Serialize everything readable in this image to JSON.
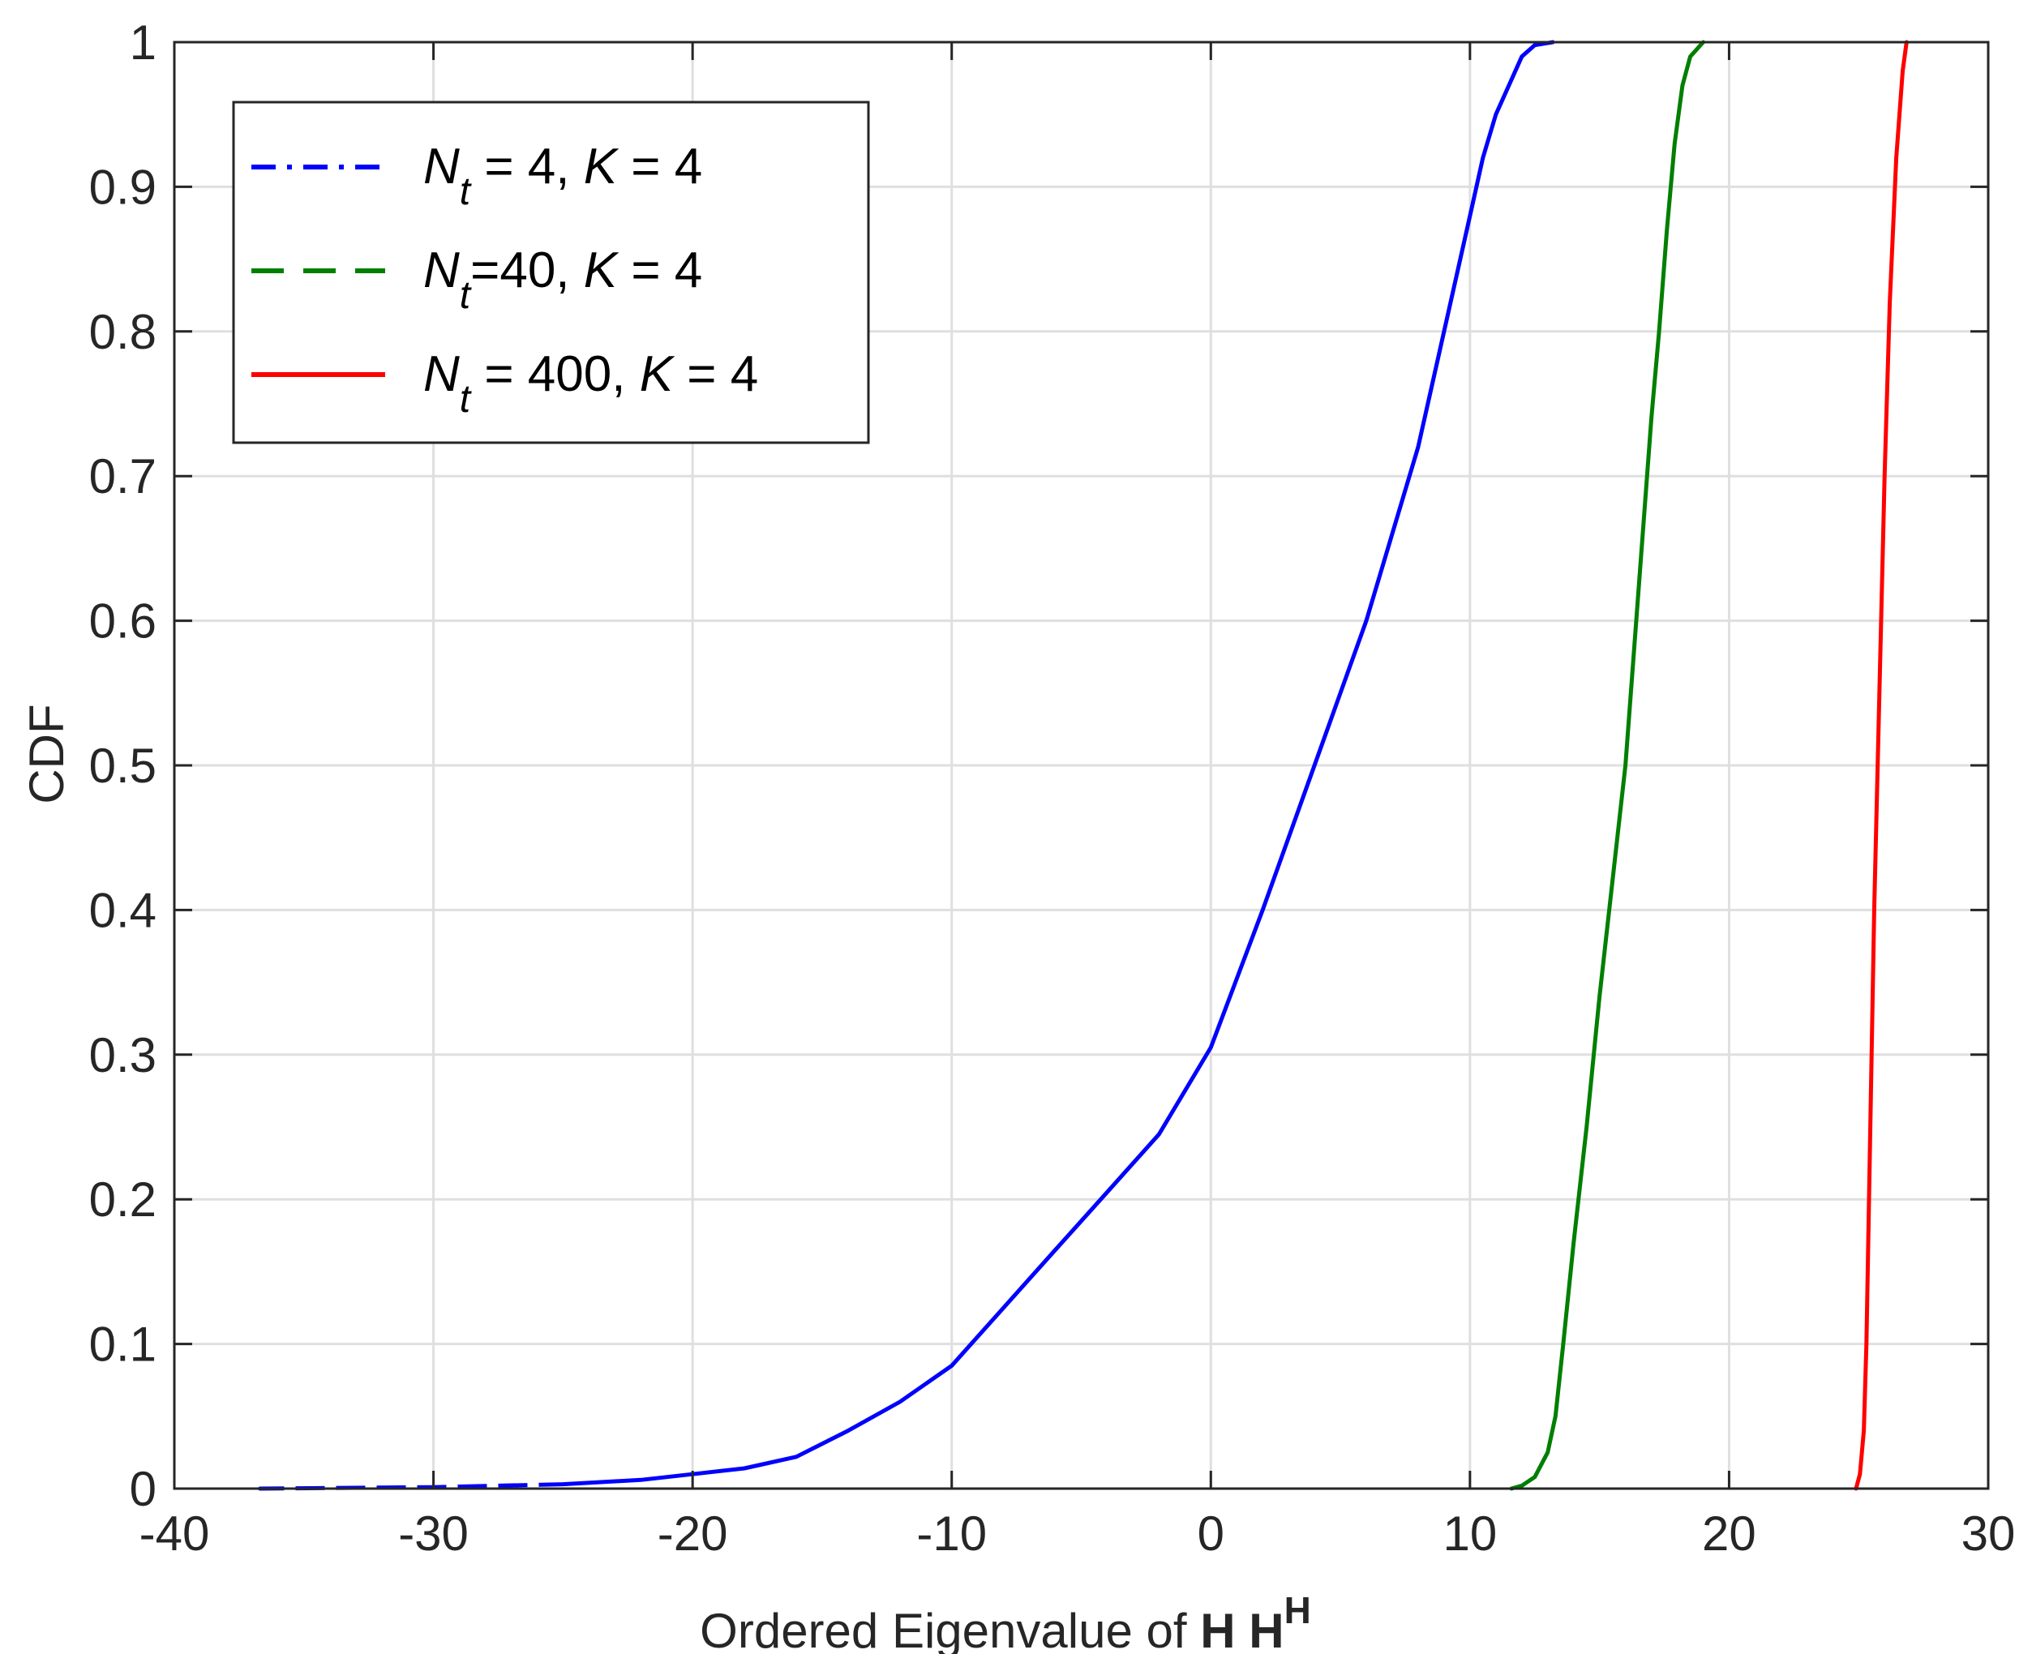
{
  "chart_data": {
    "type": "line",
    "xlabel_text": "Ordered Eigenvalue of ",
    "xlabel_bold": "H H",
    "xlabel_sup": "H",
    "ylabel": "CDF",
    "xlim": [
      -40,
      30
    ],
    "ylim": [
      0,
      1
    ],
    "xticks": [
      -40,
      -30,
      -20,
      -10,
      0,
      10,
      20,
      30
    ],
    "yticks": [
      0,
      0.1,
      0.2,
      0.3,
      0.4,
      0.5,
      0.6,
      0.7,
      0.8,
      0.9,
      1
    ],
    "xtick_labels": [
      "-40",
      "-30",
      "-20",
      "-10",
      "0",
      "10",
      "20",
      "30"
    ],
    "ytick_labels": [
      "0",
      "0.1",
      "0.2",
      "0.3",
      "0.4",
      "0.5",
      "0.6",
      "0.7",
      "0.8",
      "0.9",
      "1"
    ],
    "grid": true,
    "legend_position": "top-left",
    "series": [
      {
        "legend": {
          "n": "N",
          "sub": "t",
          "rest1": " = 4,  ",
          "k": "K",
          "rest2": " = 4"
        },
        "color": "#0000ff",
        "line_style": "dash-dot",
        "x": [
          -36.7,
          -30,
          -25,
          -22,
          -20,
          -18,
          -16,
          -14,
          -12,
          -10,
          -8,
          -6,
          -4,
          -2,
          0,
          2,
          4,
          6,
          8,
          9,
          10,
          10.5,
          11,
          11.5,
          12,
          12.5,
          13.2
        ],
        "y": [
          0,
          0.001,
          0.003,
          0.006,
          0.01,
          0.014,
          0.022,
          0.04,
          0.06,
          0.085,
          0.125,
          0.165,
          0.205,
          0.245,
          0.305,
          0.4,
          0.5,
          0.6,
          0.72,
          0.8,
          0.88,
          0.92,
          0.95,
          0.97,
          0.99,
          0.998,
          1.0
        ]
      },
      {
        "legend": {
          "n": "N",
          "sub": "t",
          "rest1": "=40,  ",
          "k": "K",
          "rest2": " = 4"
        },
        "color": "#007f00",
        "line_style": "dashed",
        "x": [
          11.6,
          12.0,
          12.5,
          13.0,
          13.3,
          13.6,
          14.0,
          14.5,
          15.0,
          15.5,
          16.0,
          16.5,
          17.0,
          17.3,
          17.6,
          17.9,
          18.2,
          18.5,
          19.0
        ],
        "y": [
          0,
          0.002,
          0.008,
          0.025,
          0.05,
          0.1,
          0.17,
          0.25,
          0.34,
          0.42,
          0.5,
          0.62,
          0.74,
          0.8,
          0.87,
          0.93,
          0.97,
          0.99,
          1.0
        ]
      },
      {
        "legend": {
          "n": "N",
          "sub": "t",
          "rest1": " = 400,  ",
          "k": "K",
          "rest2": " = 4"
        },
        "color": "#ff0000",
        "line_style": "solid",
        "x": [
          24.9,
          25.05,
          25.2,
          25.3,
          25.45,
          25.6,
          25.8,
          26.0,
          26.2,
          26.45,
          26.7,
          26.85
        ],
        "y": [
          0,
          0.01,
          0.04,
          0.1,
          0.25,
          0.4,
          0.55,
          0.7,
          0.82,
          0.92,
          0.98,
          1.0
        ]
      }
    ]
  }
}
